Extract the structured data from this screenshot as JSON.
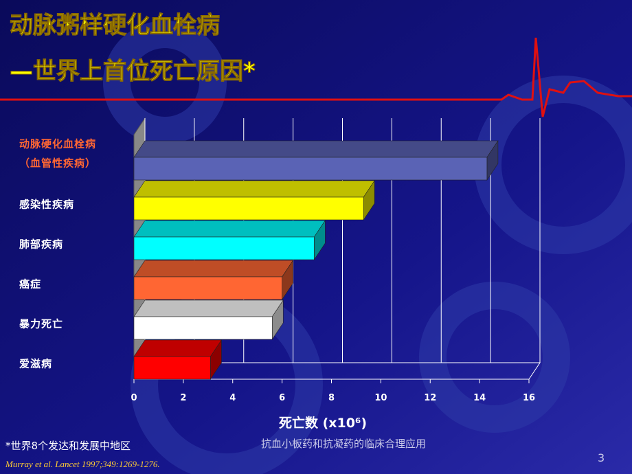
{
  "title_line1": "动脉粥样硬化血栓病",
  "title_line2": "—世界上首位死亡原因*",
  "chart_data": {
    "type": "bar3d-horizontal",
    "categories": [
      "动脉硬化血栓病\n（血管性疾病）",
      "感染性疾病",
      "肺部疾病",
      "癌症",
      "暴力死亡",
      "爱滋病"
    ],
    "values": [
      14.3,
      9.3,
      7.3,
      6.0,
      5.6,
      3.1
    ],
    "colors": [
      "#5a63b5",
      "#ffff00",
      "#00ffff",
      "#ff6633",
      "#ffffff",
      "#ff0000"
    ],
    "category_colors": [
      "#ff6633",
      "#ffffff",
      "#ffffff",
      "#ffffff",
      "#ffffff",
      "#ffffff"
    ],
    "xlim": [
      0,
      16
    ],
    "xticks": [
      0,
      2,
      4,
      6,
      8,
      10,
      12,
      14,
      16
    ],
    "grid": true,
    "x_label": "死亡数 (x10⁶)"
  },
  "footnote": "*世界8个发达和发展中地区",
  "citation": "Murray et al. Lancet 1997;349:1269-1276.",
  "footer_center": "抗血小板药和抗凝药的临床合理应用",
  "page_number": "3"
}
